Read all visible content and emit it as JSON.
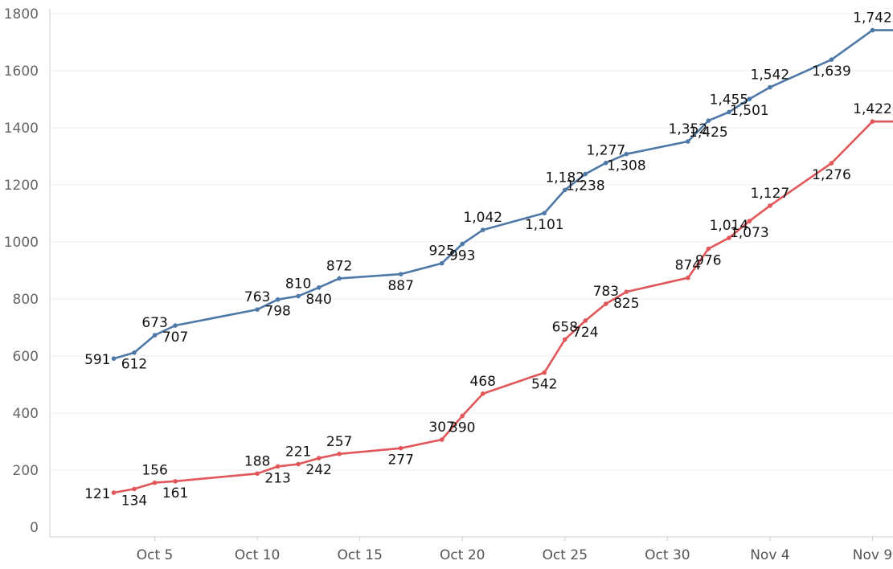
{
  "chart_data": {
    "type": "line",
    "title": "",
    "xlabel": "",
    "ylabel": "",
    "ylim": [
      0,
      1800
    ],
    "yticks": [
      0,
      200,
      400,
      600,
      800,
      1000,
      1200,
      1400,
      1600,
      1800
    ],
    "xlim": [
      "2021-10-01",
      "2021-11-10"
    ],
    "xticks": [
      {
        "date": "2021-10-05",
        "label": "Oct 5"
      },
      {
        "date": "2021-10-10",
        "label": "Oct 10"
      },
      {
        "date": "2021-10-15",
        "label": "Oct 15"
      },
      {
        "date": "2021-10-20",
        "label": "Oct 20"
      },
      {
        "date": "2021-10-25",
        "label": "Oct 25"
      },
      {
        "date": "2021-10-30",
        "label": "Oct 30"
      },
      {
        "date": "2021-11-04",
        "label": "Nov 4"
      },
      {
        "date": "2021-11-09",
        "label": "Nov 9"
      }
    ],
    "x": [
      "2021-10-03",
      "2021-10-04",
      "2021-10-05",
      "2021-10-06",
      "2021-10-10",
      "2021-10-11",
      "2021-10-12",
      "2021-10-13",
      "2021-10-14",
      "2021-10-17",
      "2021-10-19",
      "2021-10-20",
      "2021-10-21",
      "2021-10-24",
      "2021-10-25",
      "2021-10-26",
      "2021-10-27",
      "2021-10-28",
      "2021-10-31",
      "2021-11-01",
      "2021-11-02",
      "2021-11-03",
      "2021-11-04",
      "2021-11-07",
      "2021-11-09",
      "2021-11-10"
    ],
    "grid": true,
    "legend": "none",
    "series": [
      {
        "color": "#4e79a7",
        "values": [
          591,
          612,
          673,
          707,
          763,
          798,
          810,
          840,
          872,
          887,
          925,
          993,
          1042,
          1101,
          1182,
          1238,
          1277,
          1308,
          1352,
          1425,
          1455,
          1501,
          1542,
          1639,
          1742,
          1742
        ],
        "labels": [
          "591",
          "612",
          "673",
          "707",
          "763",
          "798",
          "810",
          "840",
          "872",
          "887",
          "925",
          "993",
          "1,042",
          "1,101",
          "1,182",
          "1,238",
          "1,277",
          "1,308",
          "1,352",
          "1,425",
          "1,455",
          "1,501",
          "1,542",
          "1,639",
          "1,742",
          ""
        ]
      },
      {
        "color": "#e15759",
        "values": [
          121,
          134,
          156,
          161,
          188,
          213,
          221,
          242,
          257,
          277,
          307,
          390,
          468,
          542,
          658,
          724,
          783,
          825,
          874,
          976,
          1014,
          1073,
          1127,
          1276,
          1422,
          1422
        ],
        "labels": [
          "121",
          "134",
          "156",
          "161",
          "188",
          "213",
          "221",
          "242",
          "257",
          "277",
          "307",
          "390",
          "468",
          "542",
          "658",
          "724",
          "783",
          "825",
          "874",
          "976",
          "1,014",
          "1,073",
          "1,127",
          "1,276",
          "1,422",
          ""
        ]
      }
    ]
  }
}
